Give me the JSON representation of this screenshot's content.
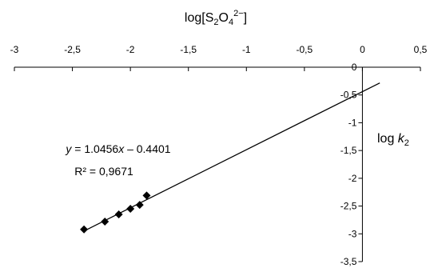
{
  "chart_data": {
    "type": "scatter",
    "title": "log[S₂O₄²⁻]",
    "title_parts": [
      "log[S",
      "2",
      "O",
      "4",
      "2−",
      "]"
    ],
    "ylabel_parts": [
      "log ",
      "k",
      "2"
    ],
    "xlim": [
      -3,
      0.5
    ],
    "ylim": [
      -3.5,
      0
    ],
    "x_ticks": [
      -3,
      -2.5,
      -2,
      -1.5,
      -1,
      -0.5,
      0,
      0.5
    ],
    "x_tick_labels": [
      "-3",
      "-2,5",
      "-2",
      "-1,5",
      "-1",
      "-0,5",
      "0",
      "0,5"
    ],
    "y_ticks": [
      0,
      -0.5,
      -1,
      -1.5,
      -2,
      -2.5,
      -3,
      -3.5
    ],
    "y_tick_labels": [
      "0",
      "-0,5",
      "-1",
      "-1,5",
      "-2",
      "-2,5",
      "-3",
      "-3,5"
    ],
    "points": [
      {
        "x": -2.4,
        "y": -2.92
      },
      {
        "x": -2.22,
        "y": -2.78
      },
      {
        "x": -2.1,
        "y": -2.65
      },
      {
        "x": -2.0,
        "y": -2.55
      },
      {
        "x": -1.92,
        "y": -2.48
      },
      {
        "x": -1.86,
        "y": -2.31
      }
    ],
    "trendline": {
      "slope": 1.0456,
      "intercept": -0.4401,
      "x_range": [
        -2.4,
        0.15
      ],
      "equation_parts": [
        "y",
        " = 1.0456",
        "x",
        " – 0.4401"
      ],
      "r2_label": "R² = 0,9671"
    },
    "marker_color": "#000000",
    "line_color": "#000000",
    "grid": false,
    "legend": "none"
  }
}
